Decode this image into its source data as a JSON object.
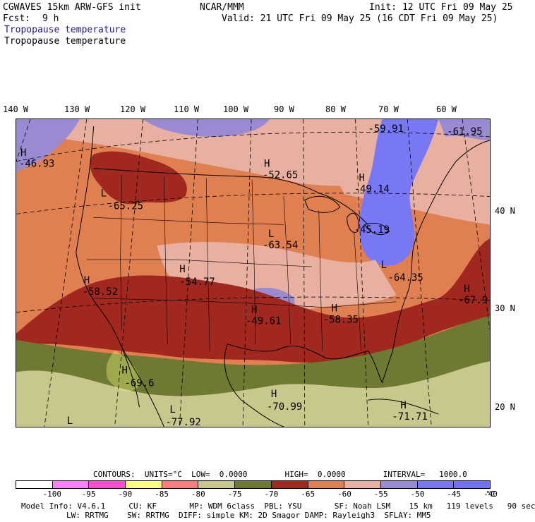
{
  "header": {
    "model": "CGWAVES 15km ARW-GFS init",
    "fcst_label": "Fcst:",
    "fcst_value": "9 h",
    "center": "NCAR/MMM",
    "init": "Init: 12 UTC Fri 09 May 25",
    "valid": "Valid: 21 UTC Fri 09 May 25 (16 CDT Fri 09 May 25)",
    "field_1": "Tropopause temperature",
    "field_2": "Tropopause temperature"
  },
  "lon_labels": [
    "140 W",
    "130 W",
    "120 W",
    "110 W",
    "100 W",
    "90 W",
    "80 W",
    "70 W",
    "60 W"
  ],
  "lat_labels": [
    "40 N",
    "30 N",
    "20 N"
  ],
  "map_labels": [
    {
      "t": "H",
      "v": "-46.93"
    },
    {
      "t": "L",
      "v": "-65.25"
    },
    {
      "t": "H",
      "v": "-52.65"
    },
    {
      "t": "H",
      "v": "-49.14"
    },
    {
      "t": "",
      "v": "-59.91"
    },
    {
      "t": "",
      "v": "-61.95"
    },
    {
      "t": "L",
      "v": "-63.54"
    },
    {
      "t": "",
      "v": "-45.19"
    },
    {
      "t": "L",
      "v": "-64.35"
    },
    {
      "t": "H",
      "v": "-58.52"
    },
    {
      "t": "H",
      "v": "-54.77"
    },
    {
      "t": "H",
      "v": "-49.61"
    },
    {
      "t": "H",
      "v": "-58.35"
    },
    {
      "t": "H",
      "v": "-67.9"
    },
    {
      "t": "H",
      "v": "-69.6"
    },
    {
      "t": "L",
      "v": "-77.92"
    },
    {
      "t": "H",
      "v": "-70.99"
    },
    {
      "t": "H",
      "v": "-71.71"
    },
    {
      "t": "L",
      "v": ""
    }
  ],
  "contours": "CONTOURS:  UNITS=°C  LOW=  0.0000        HIGH=  0.0000        INTERVAL=   1000.0",
  "colorbar": {
    "colors": [
      "#ffffff",
      "#ff7dff",
      "#ff4dd2",
      "#ffff7d",
      "#ff7d7d",
      "#c8c88c",
      "#6e7a32",
      "#a0281e",
      "#e08050",
      "#e8b0a0",
      "#9a8ad2",
      "#7878f5",
      "#7070f8"
    ],
    "ticks": [
      "-100",
      "-95",
      "-90",
      "-85",
      "-80",
      "-75",
      "-70",
      "-65",
      "-60",
      "-55",
      "-50",
      "-45",
      "-40"
    ],
    "unit": "°C"
  },
  "model_info_1": "Model Info: V4.6.1     CU: KF       MP: WDM 6class  PBL: YSU       SF: Noah LSM    15 km   119 levels   90 sec",
  "model_info_2": "LW: RRTMG    SW: RRTMG  DIFF: simple KM: 2D Smagor DAMP: Rayleigh3  SFLAY: MM5"
}
